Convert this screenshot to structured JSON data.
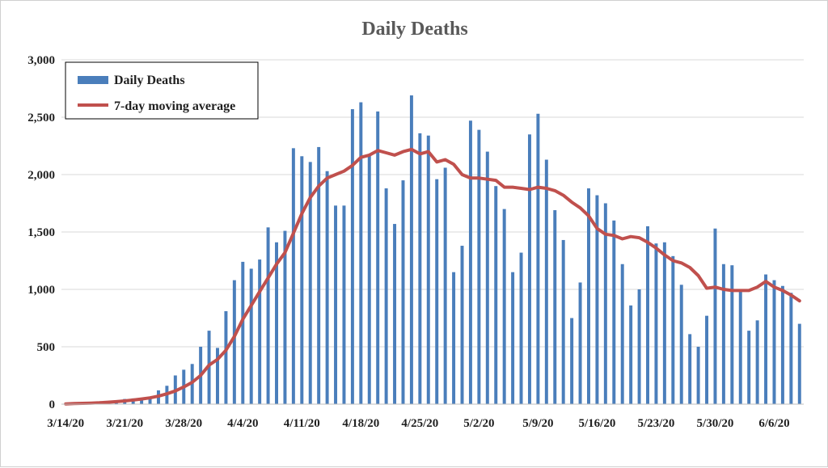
{
  "chart_data": {
    "type": "bar",
    "title": "Daily Deaths",
    "xlabel": "",
    "ylabel": "",
    "ylim": [
      0,
      3000
    ],
    "yticks": [
      "0",
      "500",
      "1,000",
      "1,500",
      "2,000",
      "2,500",
      "3,000"
    ],
    "ytick_values": [
      0,
      500,
      1000,
      1500,
      2000,
      2500,
      3000
    ],
    "xtick_labels": [
      "3/14/20",
      "3/21/20",
      "3/28/20",
      "4/4/20",
      "4/11/20",
      "4/18/20",
      "4/25/20",
      "5/2/20",
      "5/9/20",
      "5/16/20",
      "5/23/20",
      "5/30/20",
      "6/6/20"
    ],
    "start_date": "3/14/20",
    "grid": true,
    "legend_position": "top-left",
    "series": [
      {
        "name": "Daily Deaths",
        "type": "bar",
        "color": "#4a7ebb",
        "values": [
          2,
          3,
          4,
          8,
          10,
          15,
          30,
          45,
          50,
          55,
          60,
          120,
          160,
          250,
          300,
          350,
          500,
          640,
          490,
          810,
          1080,
          1240,
          1180,
          1260,
          1540,
          1410,
          1510,
          2230,
          2160,
          2110,
          2240,
          2030,
          1730,
          1730,
          2570,
          2630,
          2180,
          2550,
          1880,
          1570,
          1950,
          2690,
          2360,
          2340,
          1960,
          2060,
          1150,
          1380,
          2470,
          2390,
          2200,
          1900,
          1700,
          1150,
          1320,
          2350,
          2530,
          2130,
          1690,
          1430,
          750,
          1060,
          1880,
          1820,
          1750,
          1600,
          1220,
          860,
          1000,
          1550,
          1400,
          1410,
          1290,
          1040,
          610,
          500,
          770,
          1530,
          1220,
          1210,
          1000,
          640,
          730,
          1130,
          1080,
          1030,
          970,
          700
        ]
      },
      {
        "name": "7-day moving average",
        "type": "line",
        "color": "#c0504d",
        "values": [
          2,
          5,
          7,
          9,
          12,
          17,
          22,
          28,
          36,
          45,
          55,
          70,
          90,
          115,
          150,
          190,
          250,
          340,
          390,
          470,
          590,
          740,
          860,
          980,
          1100,
          1220,
          1320,
          1490,
          1660,
          1800,
          1900,
          1970,
          2000,
          2030,
          2080,
          2150,
          2170,
          2210,
          2190,
          2170,
          2200,
          2220,
          2180,
          2200,
          2110,
          2130,
          2090,
          2000,
          1970,
          1970,
          1960,
          1950,
          1890,
          1890,
          1880,
          1870,
          1890,
          1880,
          1860,
          1820,
          1760,
          1710,
          1640,
          1530,
          1480,
          1470,
          1440,
          1460,
          1450,
          1410,
          1360,
          1300,
          1250,
          1230,
          1190,
          1120,
          1010,
          1020,
          1000,
          990,
          990,
          990,
          1020,
          1070,
          1020,
          990,
          950,
          900
        ]
      }
    ]
  }
}
